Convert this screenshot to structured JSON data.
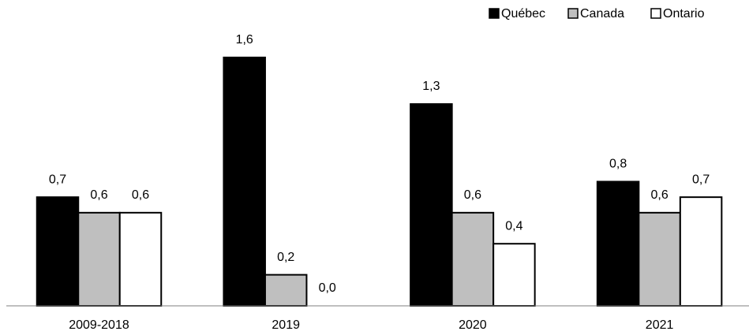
{
  "chart_data": {
    "type": "bar",
    "categories": [
      "2009-2018",
      "2019",
      "2020",
      "2021"
    ],
    "series": [
      {
        "name": "Québec",
        "color": "#000000",
        "values": [
          0.7,
          1.6,
          1.3,
          0.8
        ],
        "value_labels": [
          "0,7",
          "1,6",
          "1,3",
          "0,8"
        ]
      },
      {
        "name": "Canada",
        "color": "#bfbfbf",
        "values": [
          0.6,
          0.2,
          0.6,
          0.6
        ],
        "value_labels": [
          "0,6",
          "0,2",
          "0,6",
          "0,6"
        ]
      },
      {
        "name": "Ontario",
        "color": "#ffffff",
        "values": [
          0.6,
          0.0,
          0.4,
          0.7
        ],
        "value_labels": [
          "0,6",
          "0,0",
          "0,4",
          "0,7"
        ]
      }
    ],
    "ylim": [
      0,
      1.8
    ],
    "legend": "top-right"
  }
}
